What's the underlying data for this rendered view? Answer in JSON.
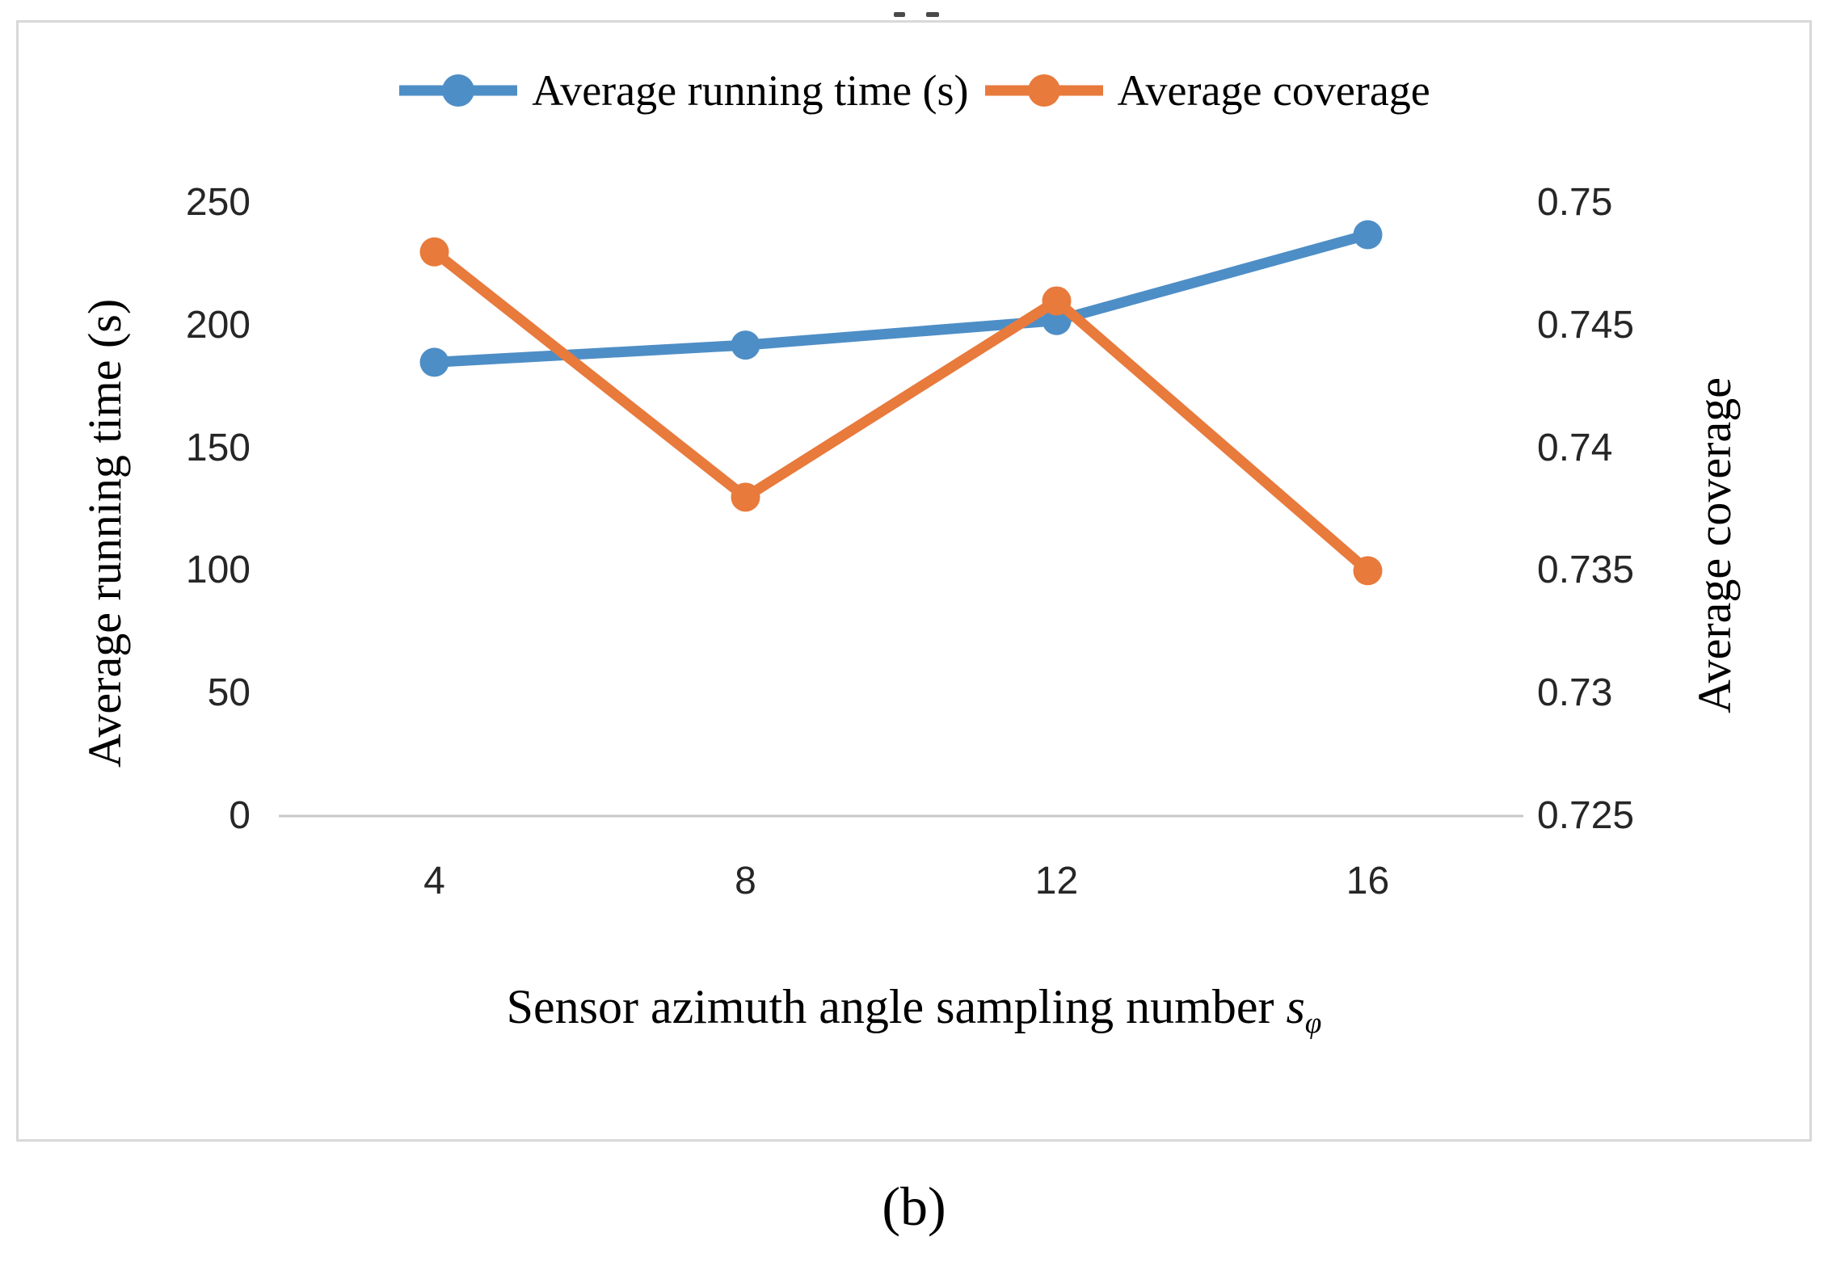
{
  "chart_data": {
    "type": "line",
    "categories": [
      "4",
      "8",
      "12",
      "16"
    ],
    "series": [
      {
        "name": "Average running time (s)",
        "yaxis": "left",
        "color": "#4E8EC6",
        "values": [
          185,
          192,
          202,
          237
        ]
      },
      {
        "name": "Average coverage",
        "yaxis": "right",
        "color": "#E87A3C",
        "values": [
          0.748,
          0.738,
          0.746,
          0.735
        ]
      }
    ],
    "x_axis": {
      "title_main": "Sensor azimuth angle sampling number ",
      "title_var": "s",
      "title_sub": "φ",
      "tick_labels": [
        "4",
        "8",
        "12",
        "16"
      ]
    },
    "left_axis": {
      "title": "Average running time (s)",
      "range": [
        0,
        250
      ],
      "tick_values": [
        0,
        50,
        100,
        150,
        200,
        250
      ],
      "tick_labels": [
        "0",
        "50",
        "100",
        "150",
        "200",
        "250"
      ]
    },
    "right_axis": {
      "title": "Average coverage",
      "range": [
        0.725,
        0.75
      ],
      "tick_values": [
        0.725,
        0.73,
        0.735,
        0.74,
        0.745,
        0.75
      ],
      "tick_labels": [
        "0.725",
        "0.73",
        "0.735",
        "0.74",
        "0.745",
        "0.75"
      ]
    },
    "legend_position": "top",
    "grid": false,
    "axis_line_color": "#C8C8C8"
  },
  "caption": "(b)",
  "colors": {
    "frame_border": "#D9D9D9",
    "text": "#000000",
    "tick_text": "#262626"
  }
}
